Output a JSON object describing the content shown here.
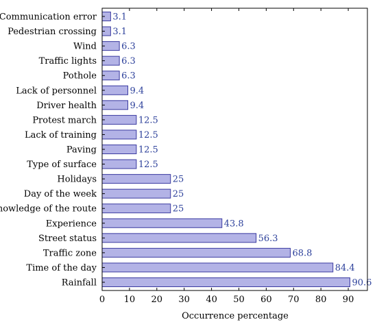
{
  "chart_data": {
    "type": "bar",
    "orientation": "horizontal",
    "categories": [
      "Communication error",
      "Pedestrian crossing",
      "Wind",
      "Traffic lights",
      "Pothole",
      "Lack of personnel",
      "Driver health",
      "Protest march",
      "Lack of training",
      "Paving",
      "Type of surface",
      "Holidays",
      "Day of the week",
      "Knowledge of the route",
      "Experience",
      "Street status",
      "Traffic zone",
      "Time of the day",
      "Rainfall"
    ],
    "values": [
      3.1,
      3.1,
      6.3,
      6.3,
      6.3,
      9.4,
      9.4,
      12.5,
      12.5,
      12.5,
      12.5,
      25,
      25,
      25,
      43.8,
      56.3,
      68.8,
      84.4,
      90.6
    ],
    "value_labels": [
      "3.1",
      "3.1",
      "6.3",
      "6.3",
      "6.3",
      "9.4",
      "9.4",
      "12.5",
      "12.5",
      "12.5",
      "12.5",
      "25",
      "25",
      "25",
      "43.8",
      "56.3",
      "68.8",
      "84.4",
      "90.6"
    ],
    "title": "",
    "xlabel": "Occurrence percentage",
    "ylabel": "",
    "xlim": [
      0,
      97
    ],
    "xticks": [
      0,
      10,
      20,
      30,
      40,
      50,
      60,
      70,
      80,
      90
    ],
    "xtick_labels": [
      "0",
      "10",
      "20",
      "30",
      "40",
      "50",
      "60",
      "70",
      "80",
      "90"
    ],
    "grid": false,
    "legend": "none",
    "colors": {
      "bar_fill": "#b3b3e6",
      "bar_stroke": "#3a3aa0",
      "value_text": "#2b3f9a",
      "axis": "#000000"
    }
  }
}
